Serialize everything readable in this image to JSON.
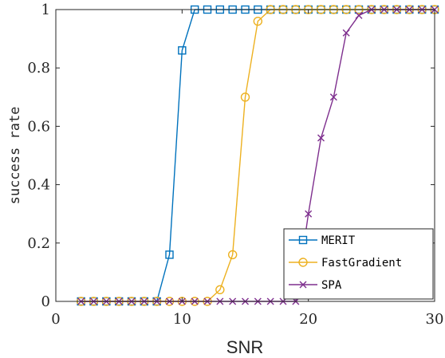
{
  "chart_data": {
    "type": "line",
    "xlabel": "SNR",
    "ylabel": "success rate",
    "xlim": [
      0,
      30
    ],
    "ylim": [
      0,
      1
    ],
    "x_ticks": [
      0,
      10,
      20,
      30
    ],
    "y_ticks": [
      0,
      0.2,
      0.4,
      0.6,
      0.8,
      1
    ],
    "x_tick_labels": [
      "0",
      "10",
      "20",
      "30"
    ],
    "y_tick_labels": [
      "0",
      "0.2",
      "0.4",
      "0.6",
      "0.8",
      "1"
    ],
    "grid": false,
    "legend_position": "bottom-right",
    "x": [
      2,
      3,
      4,
      5,
      6,
      7,
      8,
      9,
      10,
      11,
      12,
      13,
      14,
      15,
      16,
      17,
      18,
      19,
      20,
      21,
      22,
      23,
      24,
      25,
      26,
      27,
      28,
      29,
      30
    ],
    "series": [
      {
        "name": "MERIT",
        "color": "#0072BD",
        "marker": "square",
        "values": [
          0,
          0,
          0,
          0,
          0,
          0,
          0,
          0.16,
          0.86,
          1,
          1,
          1,
          1,
          1,
          1,
          1,
          1,
          1,
          1,
          1,
          1,
          1,
          1,
          1,
          1,
          1,
          1,
          1,
          1
        ]
      },
      {
        "name": "FastGradient",
        "color": "#EDB120",
        "marker": "circle",
        "values": [
          0,
          0,
          0,
          0,
          0,
          0,
          0,
          0,
          0,
          0,
          0,
          0.04,
          0.16,
          0.7,
          0.96,
          1,
          1,
          1,
          1,
          1,
          1,
          1,
          1,
          1,
          1,
          1,
          1,
          1,
          1
        ]
      },
      {
        "name": "SPA",
        "color": "#7E2F8E",
        "marker": "x",
        "values": [
          0,
          0,
          0,
          0,
          0,
          0,
          0,
          0,
          0,
          0,
          0,
          0,
          0,
          0,
          0,
          0,
          0,
          0,
          0.3,
          0.56,
          0.7,
          0.92,
          0.98,
          1,
          1,
          1,
          1,
          1,
          1
        ]
      }
    ]
  }
}
